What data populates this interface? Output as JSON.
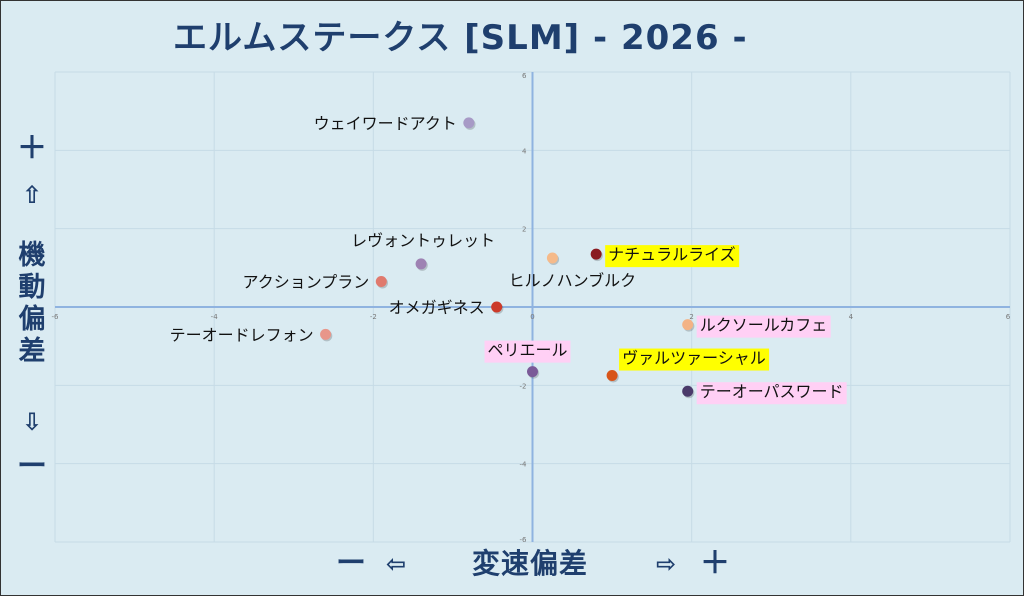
{
  "title": "エルムステークス [SLM]  - 2026 -",
  "y_axis": {
    "top_symbol": "＋",
    "top_arrow": "⇧",
    "label": "機動偏差",
    "bottom_arrow": "⇩",
    "bottom_symbol": "ー"
  },
  "x_axis": {
    "left_symbol": "ー",
    "left_arrow": "⇦",
    "label": "変速偏差",
    "right_arrow": "⇨",
    "right_symbol": "＋"
  },
  "colors": {
    "background": "#daebf2",
    "axis": "#8fb3e0",
    "title": "#1f3f6e",
    "highlight_yellow": "#ffff00",
    "highlight_pink": "#ffd0f5"
  },
  "chart_data": {
    "type": "scatter",
    "title": "エルムステークス [SLM]  - 2026 -",
    "xlabel": "変速偏差",
    "ylabel": "機動偏差",
    "xlim": [
      -6,
      6
    ],
    "ylim": [
      -6,
      6
    ],
    "x_ticks": [
      "-6",
      "-4",
      "-2",
      "0",
      "2",
      "4",
      "6"
    ],
    "y_ticks": [
      "6",
      "4",
      "2",
      "0",
      "-2",
      "-4",
      "-6"
    ],
    "grid": true,
    "points": [
      {
        "name": "ウェイワードアクト",
        "x": -0.8,
        "y": 4.7,
        "color": "#a79ac6",
        "label_pos": "left",
        "highlight": "none"
      },
      {
        "name": "レヴォントゥレット",
        "x": -1.4,
        "y": 1.1,
        "color": "#9e82b3",
        "label_pos": "above",
        "highlight": "none"
      },
      {
        "name": "アクションプラン",
        "x": -1.9,
        "y": 0.65,
        "color": "#e07a6e",
        "label_pos": "left",
        "highlight": "none"
      },
      {
        "name": "テーオードレフォン",
        "x": -2.6,
        "y": -0.7,
        "color": "#e8968a",
        "label_pos": "left",
        "highlight": "none"
      },
      {
        "name": "オメガギネス",
        "x": -0.45,
        "y": 0.0,
        "color": "#cc3a2a",
        "label_pos": "left",
        "highlight": "none"
      },
      {
        "name": "ヒルノハンブルク",
        "x": 0.25,
        "y": 1.25,
        "color": "#f5ba8a",
        "label_pos": "below-right",
        "highlight": "none"
      },
      {
        "name": "ナチュラルライズ",
        "x": 0.8,
        "y": 1.35,
        "color": "#8a1a20",
        "label_pos": "right",
        "highlight": "yellow"
      },
      {
        "name": "ルクソールカフェ",
        "x": 1.95,
        "y": -0.45,
        "color": "#f3b386",
        "label_pos": "right",
        "highlight": "pink"
      },
      {
        "name": "ヴァルツァーシャル",
        "x": 1.0,
        "y": -1.75,
        "color": "#d8551a",
        "label_pos": "above-right",
        "highlight": "yellow"
      },
      {
        "name": "ペリエール",
        "x": 0.0,
        "y": -1.65,
        "color": "#7a5a98",
        "label_pos": "above-left",
        "highlight": "pink"
      },
      {
        "name": "テーオーパスワード",
        "x": 1.95,
        "y": -2.15,
        "color": "#4a3a6a",
        "label_pos": "right",
        "highlight": "pink"
      }
    ]
  }
}
